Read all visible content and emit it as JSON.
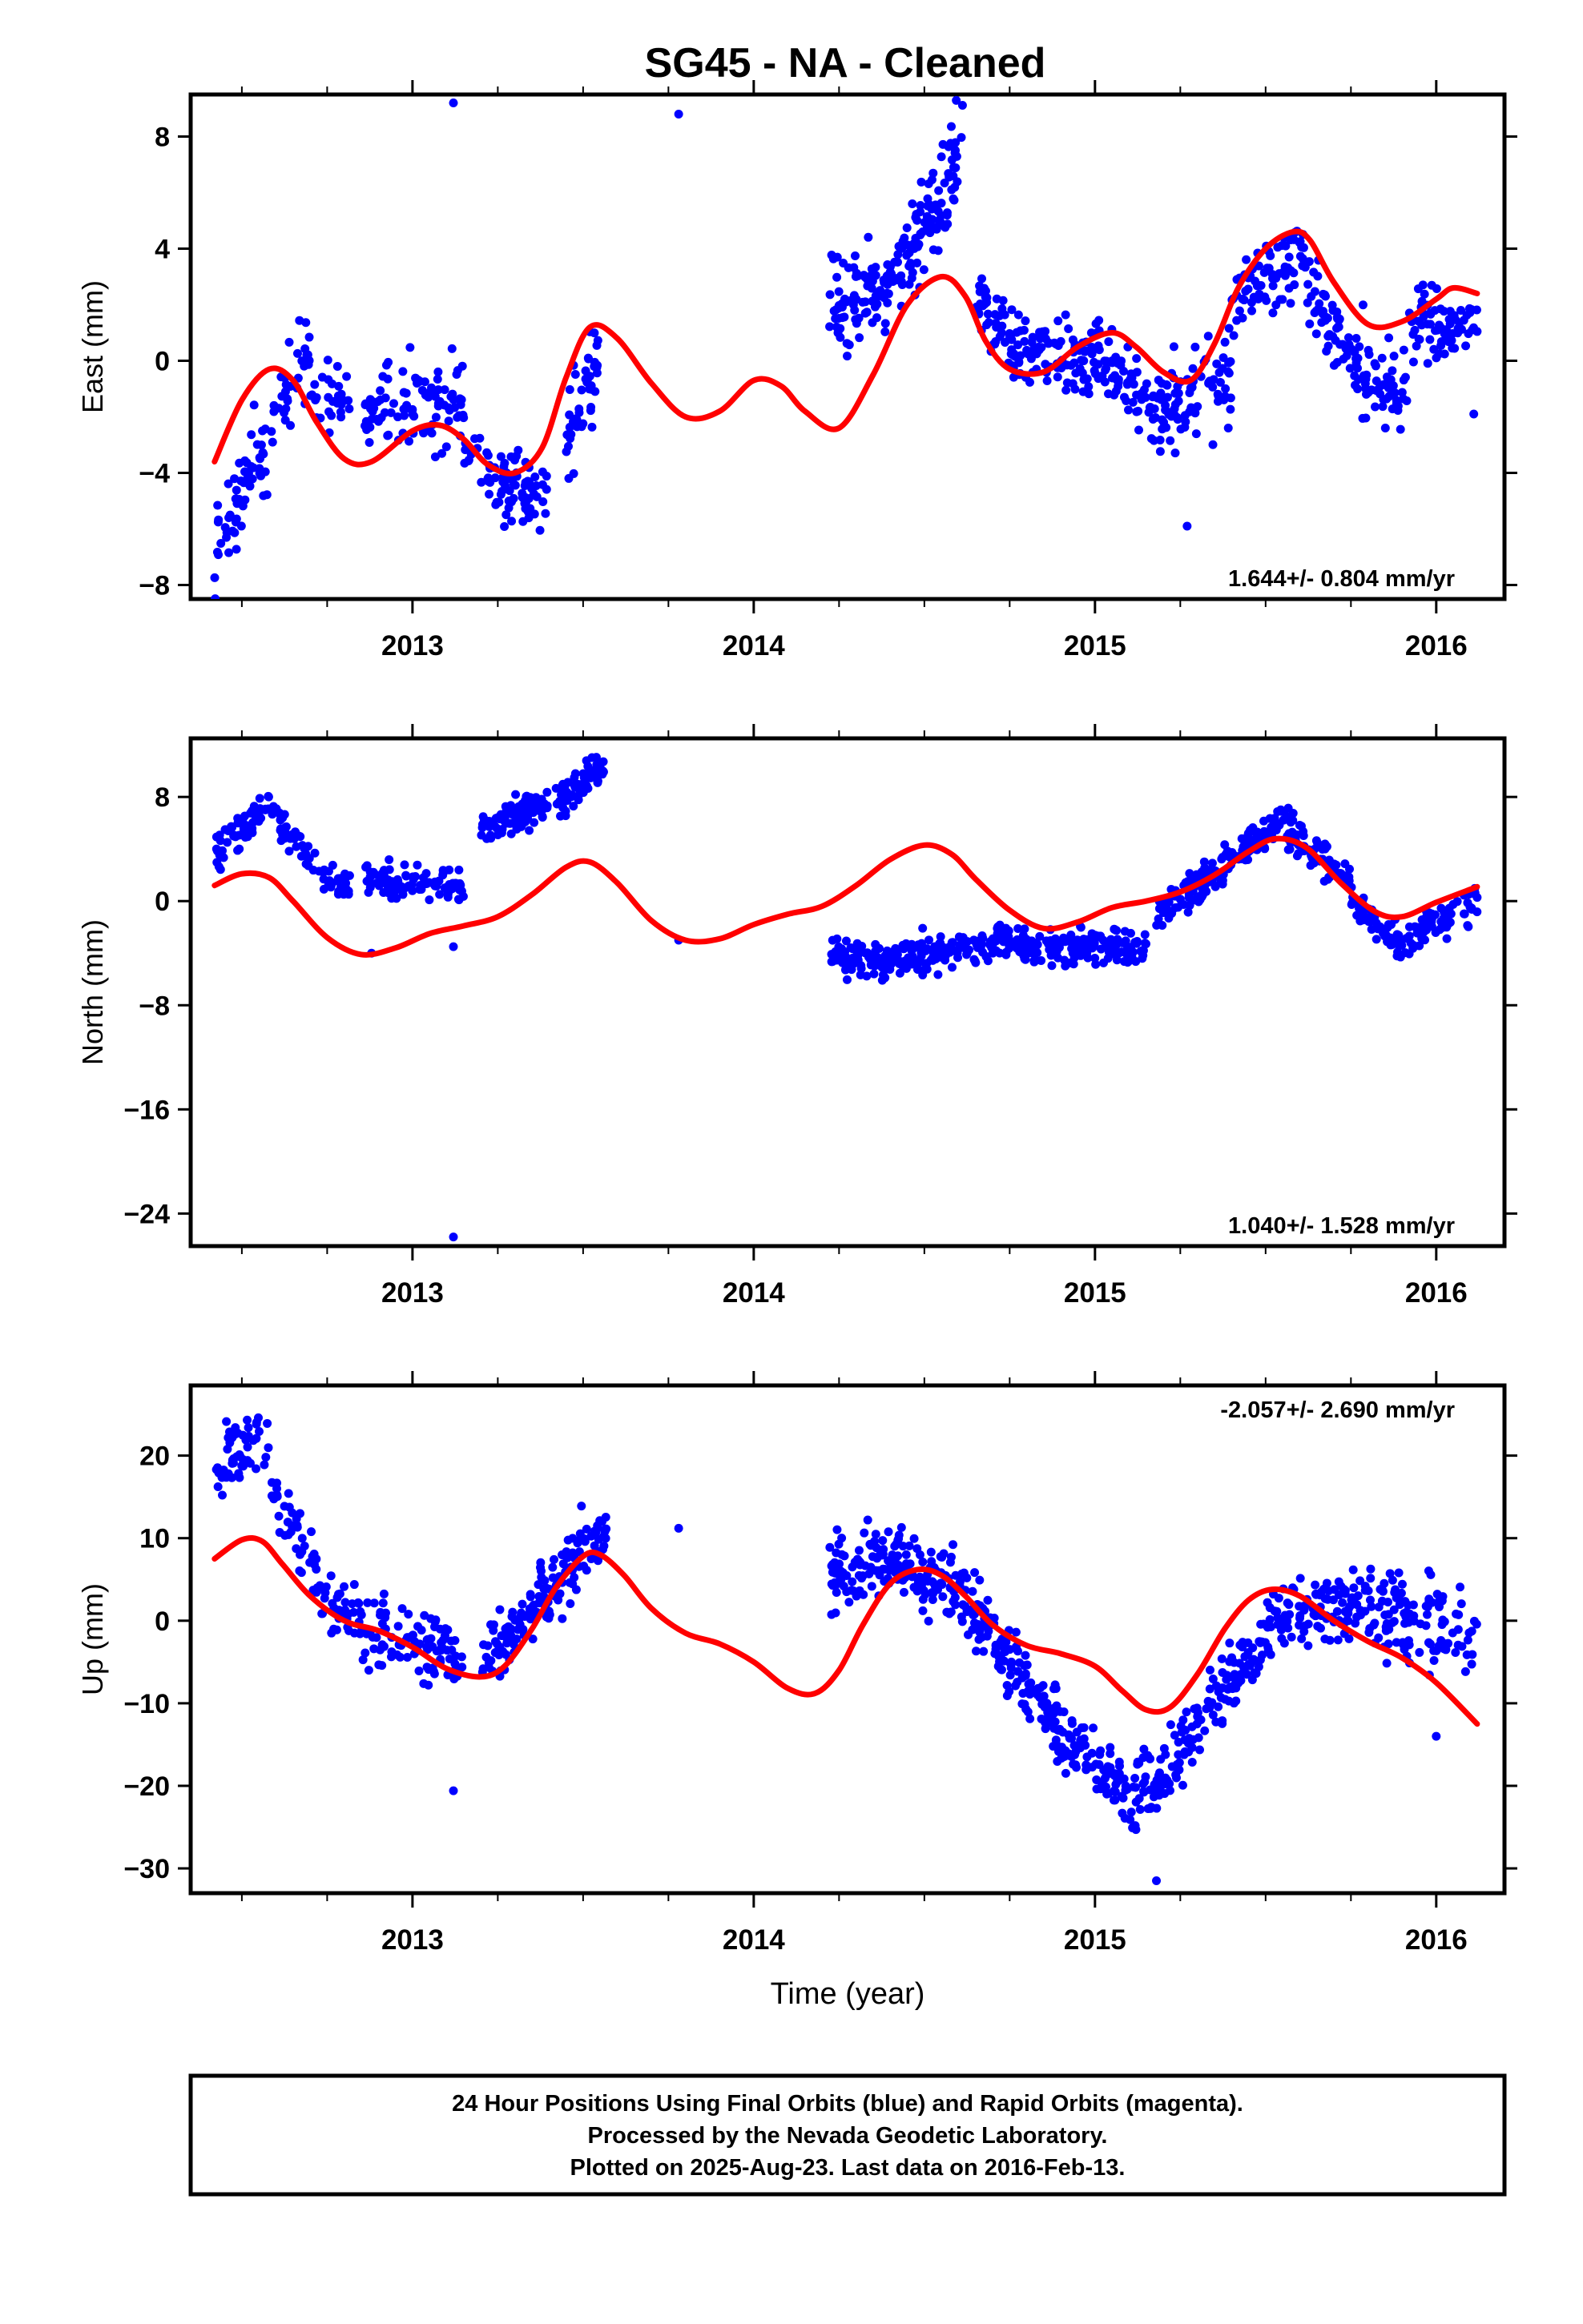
{
  "title": "SG45  - NA - Cleaned",
  "colors": {
    "final_orbits": "#0000ff",
    "model": "#ff0000",
    "frame": "#000000"
  },
  "footer": {
    "line1": "24 Hour Positions Using Final Orbits (blue) and Rapid Orbits (magenta).",
    "line2": "Processed by the Nevada Geodetic Laboratory.",
    "line3": "Plotted on 2025-Aug-23. Last data on 2016-Feb-13."
  },
  "chart_data": [
    {
      "type": "scatter",
      "id": "east",
      "ylabel": "East (mm)",
      "xlim": [
        2012.35,
        2016.2
      ],
      "ylim": [
        -8.5,
        9.5
      ],
      "yticks": [
        -8,
        -4,
        0,
        4,
        8
      ],
      "xticks": [
        2013,
        2014,
        2015,
        2016
      ],
      "xlabel": "",
      "grid": false,
      "rate_label": "1.644+/- 0.804 mm/yr",
      "rate_position": "bottom-right",
      "series": [
        {
          "kind": "points",
          "color": "#0000ff",
          "segments": [
            {
              "x0": 2012.42,
              "x1": 2012.56,
              "y0": -7.0,
              "y1": -3.0,
              "noise": 1.0,
              "n": 50
            },
            {
              "x0": 2012.56,
              "x1": 2012.7,
              "y0": -3.0,
              "y1": 0.5,
              "noise": 1.2,
              "n": 40
            },
            {
              "x0": 2012.7,
              "x1": 2012.82,
              "y0": -1.0,
              "y1": -1.8,
              "noise": 1.0,
              "n": 28
            },
            {
              "x0": 2012.86,
              "x1": 2013.15,
              "y0": -1.8,
              "y1": -1.2,
              "noise": 1.2,
              "n": 95
            },
            {
              "x0": 2013.15,
              "x1": 2013.22,
              "y0": -2.8,
              "y1": -3.4,
              "noise": 0.8,
              "n": 12
            },
            {
              "x0": 2013.22,
              "x1": 2013.4,
              "y0": -4.2,
              "y1": -4.8,
              "noise": 1.0,
              "n": 75
            },
            {
              "x0": 2013.45,
              "x1": 2013.55,
              "y0": -2.8,
              "y1": 0.5,
              "noise": 1.2,
              "n": 45
            },
            {
              "x0": 2014.22,
              "x1": 2014.4,
              "y0": 2.0,
              "y1": 2.5,
              "noise": 1.2,
              "n": 80
            },
            {
              "x0": 2014.4,
              "x1": 2014.62,
              "y0": 2.8,
              "y1": 7.5,
              "noise": 1.3,
              "n": 105
            },
            {
              "x0": 2014.65,
              "x1": 2014.76,
              "y0": 2.0,
              "y1": 0.8,
              "noise": 1.0,
              "n": 45
            },
            {
              "x0": 2014.76,
              "x1": 2015.05,
              "y0": 0.3,
              "y1": 0.0,
              "noise": 0.9,
              "n": 115
            },
            {
              "x0": 2015.05,
              "x1": 2015.16,
              "y0": -0.4,
              "y1": -1.5,
              "noise": 0.9,
              "n": 40
            },
            {
              "x0": 2015.16,
              "x1": 2015.4,
              "y0": -2.0,
              "y1": -0.5,
              "noise": 1.1,
              "n": 95
            },
            {
              "x0": 2015.4,
              "x1": 2015.62,
              "y0": 2.0,
              "y1": 4.0,
              "noise": 1.1,
              "n": 75
            },
            {
              "x0": 2015.62,
              "x1": 2015.82,
              "y0": 2.5,
              "y1": -0.8,
              "noise": 1.1,
              "n": 75
            },
            {
              "x0": 2015.82,
              "x1": 2015.92,
              "y0": -1.0,
              "y1": -0.8,
              "noise": 1.2,
              "n": 35
            },
            {
              "x0": 2015.92,
              "x1": 2016.12,
              "y0": 1.5,
              "y1": 1.2,
              "noise": 0.9,
              "n": 75
            }
          ],
          "outliers": [
            [
              2013.12,
              9.2
            ],
            [
              2013.78,
              8.8
            ],
            [
              2015.27,
              -5.9
            ],
            [
              2016.11,
              -1.9
            ]
          ]
        },
        {
          "kind": "model",
          "color": "#ff0000",
          "x": [
            2012.42,
            2012.5,
            2012.58,
            2012.65,
            2012.72,
            2012.8,
            2012.88,
            2013.0,
            2013.08,
            2013.15,
            2013.22,
            2013.3,
            2013.38,
            2013.45,
            2013.52,
            2013.6,
            2013.7,
            2013.8,
            2013.9,
            2014.0,
            2014.08,
            2014.15,
            2014.25,
            2014.35,
            2014.45,
            2014.55,
            2014.62,
            2014.68,
            2014.75,
            2014.85,
            2014.95,
            2015.05,
            2015.12,
            2015.2,
            2015.28,
            2015.35,
            2015.42,
            2015.5,
            2015.58,
            2015.63,
            2015.7,
            2015.8,
            2015.9,
            2016.0,
            2016.05,
            2016.12
          ],
          "y": [
            -3.6,
            -1.4,
            -0.3,
            -0.7,
            -2.2,
            -3.5,
            -3.6,
            -2.5,
            -2.3,
            -2.8,
            -3.7,
            -4.0,
            -3.1,
            -0.6,
            1.2,
            0.8,
            -0.8,
            -2.0,
            -1.8,
            -0.7,
            -0.9,
            -1.8,
            -2.4,
            -0.5,
            2.0,
            3.0,
            2.3,
            0.7,
            -0.3,
            -0.4,
            0.5,
            1.0,
            0.5,
            -0.4,
            -0.7,
            0.6,
            2.6,
            4.0,
            4.6,
            4.3,
            2.8,
            1.3,
            1.4,
            2.2,
            2.6,
            2.4
          ]
        }
      ]
    },
    {
      "type": "scatter",
      "id": "north",
      "ylabel": "North (mm)",
      "xlim": [
        2012.35,
        2016.2
      ],
      "ylim": [
        -26.5,
        12.5
      ],
      "yticks": [
        -24,
        -16,
        -8,
        0,
        8
      ],
      "xticks": [
        2013,
        2014,
        2015,
        2016
      ],
      "xlabel": "",
      "grid": false,
      "rate_label": "1.040+/- 1.528 mm/yr",
      "rate_position": "bottom-right",
      "series": [
        {
          "kind": "points",
          "color": "#0000ff",
          "segments": [
            {
              "x0": 2012.42,
              "x1": 2012.58,
              "y0": 3.5,
              "y1": 7.5,
              "noise": 1.0,
              "n": 55
            },
            {
              "x0": 2012.58,
              "x1": 2012.72,
              "y0": 7.0,
              "y1": 2.5,
              "noise": 1.0,
              "n": 40
            },
            {
              "x0": 2012.72,
              "x1": 2012.82,
              "y0": 1.8,
              "y1": 1.0,
              "noise": 0.8,
              "n": 30
            },
            {
              "x0": 2012.86,
              "x1": 2013.15,
              "y0": 1.8,
              "y1": 1.0,
              "noise": 1.0,
              "n": 95
            },
            {
              "x0": 2013.2,
              "x1": 2013.4,
              "y0": 5.5,
              "y1": 7.5,
              "noise": 0.9,
              "n": 90
            },
            {
              "x0": 2013.42,
              "x1": 2013.57,
              "y0": 7.5,
              "y1": 10.5,
              "noise": 0.9,
              "n": 65
            },
            {
              "x0": 2014.22,
              "x1": 2014.4,
              "y0": -4.0,
              "y1": -5.0,
              "noise": 0.9,
              "n": 80
            },
            {
              "x0": 2014.4,
              "x1": 2014.75,
              "y0": -4.5,
              "y1": -3.0,
              "noise": 1.0,
              "n": 150
            },
            {
              "x0": 2014.75,
              "x1": 2015.15,
              "y0": -3.5,
              "y1": -3.5,
              "noise": 0.9,
              "n": 160
            },
            {
              "x0": 2015.18,
              "x1": 2015.4,
              "y0": -1.0,
              "y1": 3.0,
              "noise": 1.0,
              "n": 90
            },
            {
              "x0": 2015.4,
              "x1": 2015.55,
              "y0": 3.0,
              "y1": 6.5,
              "noise": 0.8,
              "n": 60
            },
            {
              "x0": 2015.55,
              "x1": 2015.75,
              "y0": 6.0,
              "y1": 1.5,
              "noise": 1.0,
              "n": 80
            },
            {
              "x0": 2015.75,
              "x1": 2015.9,
              "y0": 0.0,
              "y1": -3.5,
              "noise": 0.9,
              "n": 60
            },
            {
              "x0": 2015.9,
              "x1": 2016.12,
              "y0": -3.0,
              "y1": 0.0,
              "noise": 0.9,
              "n": 75
            }
          ],
          "outliers": [
            [
              2013.12,
              -25.8
            ],
            [
              2013.12,
              -3.5
            ],
            [
              2013.78,
              -3.0
            ],
            [
              2012.88,
              -4.0
            ]
          ]
        },
        {
          "kind": "model",
          "color": "#ff0000",
          "x": [
            2012.42,
            2012.5,
            2012.58,
            2012.65,
            2012.75,
            2012.85,
            2012.95,
            2013.05,
            2013.15,
            2013.25,
            2013.35,
            2013.45,
            2013.52,
            2013.6,
            2013.7,
            2013.8,
            2013.9,
            2014.0,
            2014.1,
            2014.2,
            2014.3,
            2014.4,
            2014.5,
            2014.58,
            2014.65,
            2014.75,
            2014.85,
            2014.95,
            2015.05,
            2015.15,
            2015.25,
            2015.35,
            2015.45,
            2015.53,
            2015.62,
            2015.72,
            2015.82,
            2015.9,
            2016.0,
            2016.12
          ],
          "y": [
            1.2,
            2.1,
            1.8,
            0.0,
            -2.8,
            -4.1,
            -3.6,
            -2.5,
            -1.9,
            -1.2,
            0.5,
            2.6,
            3.0,
            1.4,
            -1.5,
            -3.0,
            -2.9,
            -1.8,
            -1.0,
            -0.4,
            1.2,
            3.2,
            4.3,
            3.6,
            1.7,
            -0.7,
            -2.1,
            -1.6,
            -0.5,
            0.0,
            0.7,
            2.0,
            3.8,
            4.8,
            4.1,
            1.4,
            -0.8,
            -1.2,
            -0.1,
            1.1
          ]
        }
      ]
    },
    {
      "type": "scatter",
      "id": "up",
      "ylabel": "Up (mm)",
      "xlim": [
        2012.35,
        2016.2
      ],
      "ylim": [
        -33,
        28.5
      ],
      "yticks": [
        -30,
        -20,
        -10,
        0,
        10,
        20
      ],
      "xticks": [
        2013,
        2014,
        2015,
        2016
      ],
      "xlabel": "Time (year)",
      "grid": false,
      "rate_label": "-2.057+/- 2.690 mm/yr",
      "rate_position": "top-right",
      "series": [
        {
          "kind": "points",
          "color": "#0000ff",
          "segments": [
            {
              "x0": 2012.42,
              "x1": 2012.58,
              "y0": 18.0,
              "y1": 23.0,
              "noise": 3.0,
              "n": 55
            },
            {
              "x0": 2012.58,
              "x1": 2012.72,
              "y0": 15.0,
              "y1": 6.0,
              "noise": 2.5,
              "n": 40
            },
            {
              "x0": 2012.72,
              "x1": 2012.85,
              "y0": 3.0,
              "y1": 0.0,
              "noise": 2.5,
              "n": 40
            },
            {
              "x0": 2012.85,
              "x1": 2013.15,
              "y0": -1.0,
              "y1": -4.0,
              "noise": 3.0,
              "n": 95
            },
            {
              "x0": 2013.2,
              "x1": 2013.42,
              "y0": -5.0,
              "y1": 5.0,
              "noise": 3.0,
              "n": 90
            },
            {
              "x0": 2013.42,
              "x1": 2013.57,
              "y0": 5.0,
              "y1": 11.0,
              "noise": 3.0,
              "n": 60
            },
            {
              "x0": 2014.22,
              "x1": 2014.4,
              "y0": 5.0,
              "y1": 7.0,
              "noise": 3.0,
              "n": 80
            },
            {
              "x0": 2014.4,
              "x1": 2014.62,
              "y0": 7.0,
              "y1": 4.0,
              "noise": 3.0,
              "n": 95
            },
            {
              "x0": 2014.62,
              "x1": 2014.85,
              "y0": 2.0,
              "y1": -10.0,
              "noise": 3.0,
              "n": 95
            },
            {
              "x0": 2014.85,
              "x1": 2015.1,
              "y0": -12.0,
              "y1": -22.0,
              "noise": 3.0,
              "n": 105
            },
            {
              "x0": 2015.1,
              "x1": 2015.25,
              "y0": -22.0,
              "y1": -17.0,
              "noise": 3.0,
              "n": 60
            },
            {
              "x0": 2015.25,
              "x1": 2015.5,
              "y0": -15.0,
              "y1": -2.0,
              "noise": 3.0,
              "n": 100
            },
            {
              "x0": 2015.5,
              "x1": 2015.8,
              "y0": 0.0,
              "y1": 2.0,
              "noise": 3.0,
              "n": 110
            },
            {
              "x0": 2015.8,
              "x1": 2016.12,
              "y0": 1.0,
              "y1": -2.0,
              "noise": 4.0,
              "n": 110
            }
          ],
          "outliers": [
            [
              2013.12,
              -20.6
            ],
            [
              2013.78,
              11.2
            ],
            [
              2016.0,
              -14.0
            ],
            [
              2015.18,
              -31.5
            ]
          ]
        },
        {
          "kind": "model",
          "color": "#ff0000",
          "x": [
            2012.42,
            2012.5,
            2012.56,
            2012.62,
            2012.7,
            2012.8,
            2012.9,
            2013.0,
            2013.1,
            2013.2,
            2013.27,
            2013.35,
            2013.42,
            2013.5,
            2013.55,
            2013.62,
            2013.7,
            2013.8,
            2013.9,
            2014.0,
            2014.1,
            2014.18,
            2014.25,
            2014.32,
            2014.4,
            2014.48,
            2014.55,
            2014.62,
            2014.7,
            2014.8,
            2014.9,
            2015.0,
            2015.08,
            2015.15,
            2015.22,
            2015.3,
            2015.38,
            2015.45,
            2015.52,
            2015.6,
            2015.7,
            2015.8,
            2015.9,
            2016.0,
            2016.12
          ],
          "y": [
            7.5,
            9.8,
            9.6,
            6.8,
            3.0,
            0.0,
            -1.2,
            -3.2,
            -5.8,
            -6.8,
            -5.5,
            -1.0,
            4.0,
            7.8,
            8.0,
            5.5,
            1.5,
            -1.5,
            -2.8,
            -5.0,
            -8.2,
            -8.8,
            -6.0,
            -0.5,
            4.5,
            6.2,
            5.5,
            3.0,
            -0.5,
            -3.0,
            -4.0,
            -5.5,
            -8.5,
            -10.8,
            -10.5,
            -6.5,
            -1.0,
            2.5,
            3.8,
            3.0,
            0.0,
            -2.5,
            -4.5,
            -7.5,
            -12.5
          ]
        }
      ]
    }
  ]
}
